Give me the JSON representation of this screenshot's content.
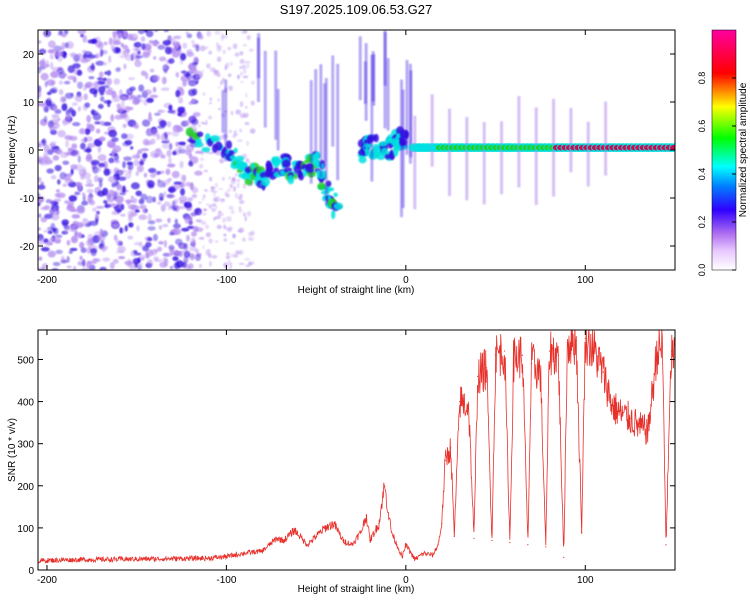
{
  "title": "S197.2025.109.06.53.G27",
  "colors": {
    "snr_line": "#e8302a",
    "spectrogram_peak": "#d4004a",
    "spectrogram_high": "#20d020",
    "spectrogram_mid": "#00e0e0",
    "spectrogram_low": "#3010e0",
    "spectrogram_faint": "#b48cf0"
  },
  "chart_data": [
    {
      "type": "heatmap",
      "title": "",
      "xlabel": "Height of straight line (km)",
      "ylabel": "Frequency (Hz)",
      "xlim": [
        -205,
        150
      ],
      "ylim": [
        -25,
        25
      ],
      "xticks": [
        -200,
        -100,
        0,
        100
      ],
      "yticks": [
        -20,
        -10,
        0,
        10,
        20
      ],
      "xtick_labels": [
        "-200",
        "-100",
        "0",
        "100"
      ],
      "ytick_labels": [
        "-20",
        "-10",
        "0",
        "10",
        "20"
      ],
      "colorbar": {
        "label": "Normalized spectral amplitude",
        "range": [
          0.0,
          1.0
        ],
        "ticks": [
          0.0,
          0.2,
          0.4,
          0.6,
          0.8
        ],
        "tick_labels": [
          "0.0",
          "0.2",
          "0.4",
          "0.6",
          "0.8"
        ],
        "colormap": "rainbow (white-violet-blue-cyan-green-yellow-red-magenta)"
      },
      "features": [
        {
          "description": "diffuse noise cloud",
          "x_range": [
            -205,
            -115
          ],
          "freq_range": [
            -25,
            25
          ],
          "amplitude": 0.15
        },
        {
          "description": "descending spectral track",
          "points": [
            [
              -120,
              3
            ],
            [
              -100,
              0
            ],
            [
              -90,
              -4
            ],
            [
              -80,
              -6
            ],
            [
              -70,
              -3
            ],
            [
              -60,
              -5
            ],
            [
              -50,
              -2
            ],
            [
              -45,
              -8
            ],
            [
              -38,
              -13
            ]
          ],
          "amplitude": 0.35
        },
        {
          "description": "short rising track",
          "points": [
            [
              -25,
              -1
            ],
            [
              -20,
              1
            ],
            [
              -10,
              0
            ],
            [
              -5,
              2
            ],
            [
              0,
              2
            ]
          ],
          "amplitude": 0.3
        },
        {
          "description": "strong carrier line",
          "x_range": [
            5,
            150
          ],
          "freq": 0.5,
          "amplitude_start": 0.4,
          "amplitude_end": 0.95
        }
      ]
    },
    {
      "type": "line",
      "title": "",
      "xlabel": "Height of straight line (km)",
      "ylabel": "SNR (10 * v/v)",
      "xlim": [
        -205,
        150
      ],
      "ylim": [
        0,
        570
      ],
      "xticks": [
        -200,
        -100,
        0,
        100
      ],
      "yticks": [
        0,
        100,
        200,
        300,
        400,
        500
      ],
      "xtick_labels": [
        "-200",
        "-100",
        "0",
        "100"
      ],
      "ytick_labels": [
        "0",
        "100",
        "200",
        "300",
        "400",
        "500"
      ],
      "series": [
        {
          "x": [
            -205,
            -190,
            -170,
            -150,
            -130,
            -110,
            -100,
            -90,
            -80,
            -72,
            -68,
            -62,
            -55,
            -50,
            -45,
            -40,
            -35,
            -30,
            -25,
            -22,
            -20,
            -15,
            -12,
            -8,
            -5,
            -2,
            0,
            5,
            10,
            15,
            18,
            20,
            22,
            25,
            27,
            30,
            35,
            38,
            40,
            45,
            48,
            50,
            55,
            58,
            60,
            65,
            68,
            70,
            75,
            78,
            80,
            85,
            88,
            90,
            95,
            98,
            100,
            105,
            110,
            115,
            120,
            125,
            130,
            135,
            140,
            143,
            145,
            148,
            150
          ],
          "values": [
            22,
            24,
            25,
            26,
            27,
            28,
            32,
            40,
            45,
            75,
            70,
            95,
            60,
            80,
            100,
            110,
            70,
            60,
            90,
            130,
            70,
            110,
            200,
            90,
            60,
            30,
            60,
            25,
            40,
            35,
            60,
            110,
            260,
            290,
            80,
            400,
            390,
            75,
            460,
            480,
            70,
            510,
            520,
            65,
            500,
            510,
            60,
            490,
            470,
            55,
            520,
            510,
            30,
            540,
            545,
            90,
            550,
            520,
            470,
            390,
            370,
            360,
            340,
            330,
            520,
            530,
            60,
            520,
            500
          ]
        }
      ]
    }
  ]
}
